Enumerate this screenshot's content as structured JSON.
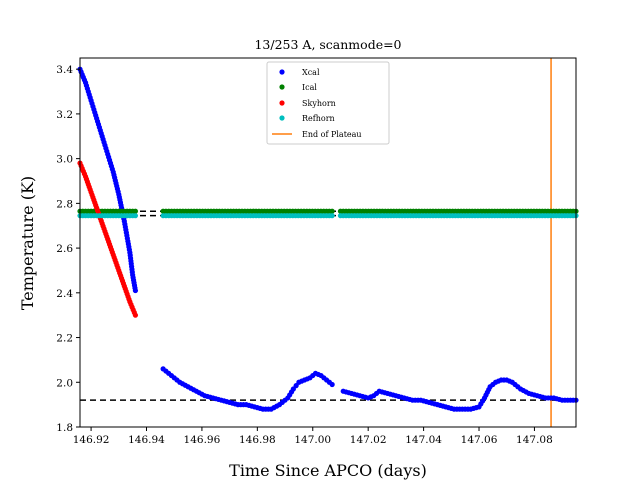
{
  "chart_data": {
    "type": "scatter",
    "title": "13/253 A, scanmode=0",
    "xlabel": "Time Since APCO (days)",
    "ylabel": "Temperature (K)",
    "xlim": [
      146.916,
      147.095
    ],
    "ylim": [
      1.8,
      3.45
    ],
    "xticks": [
      "146.92",
      "146.94",
      "146.96",
      "146.98",
      "147.00",
      "147.02",
      "147.04",
      "147.06",
      "147.08"
    ],
    "yticks": [
      "1.8",
      "2.0",
      "2.2",
      "2.4",
      "2.6",
      "2.8",
      "3.0",
      "3.2",
      "3.4"
    ],
    "grid": false,
    "legend_position": "top-center",
    "series": [
      {
        "name": "Xcal",
        "color": "#0000ff",
        "segments": [
          [
            [
              146.916,
              3.4
            ],
            [
              146.918,
              3.34
            ],
            [
              146.92,
              3.26
            ],
            [
              146.922,
              3.18
            ],
            [
              146.924,
              3.1
            ],
            [
              146.926,
              3.02
            ],
            [
              146.928,
              2.94
            ],
            [
              146.93,
              2.84
            ],
            [
              146.932,
              2.72
            ],
            [
              146.934,
              2.58
            ],
            [
              146.935,
              2.48
            ],
            [
              146.936,
              2.41
            ]
          ],
          [
            [
              146.946,
              2.06
            ],
            [
              146.949,
              2.03
            ],
            [
              146.952,
              2.0
            ],
            [
              146.955,
              1.98
            ],
            [
              146.958,
              1.96
            ],
            [
              146.961,
              1.94
            ],
            [
              146.964,
              1.93
            ],
            [
              146.967,
              1.92
            ],
            [
              146.97,
              1.91
            ],
            [
              146.973,
              1.9
            ],
            [
              146.976,
              1.9
            ],
            [
              146.979,
              1.89
            ],
            [
              146.982,
              1.88
            ],
            [
              146.985,
              1.88
            ],
            [
              146.988,
              1.9
            ],
            [
              146.991,
              1.93
            ],
            [
              146.993,
              1.97
            ],
            [
              146.995,
              2.0
            ],
            [
              146.997,
              2.01
            ],
            [
              146.999,
              2.02
            ],
            [
              147.001,
              2.04
            ],
            [
              147.003,
              2.03
            ],
            [
              147.005,
              2.01
            ],
            [
              147.007,
              1.99
            ]
          ],
          [
            [
              147.011,
              1.96
            ],
            [
              147.014,
              1.95
            ],
            [
              147.017,
              1.94
            ],
            [
              147.02,
              1.93
            ],
            [
              147.022,
              1.94
            ],
            [
              147.024,
              1.96
            ],
            [
              147.027,
              1.95
            ],
            [
              147.03,
              1.94
            ],
            [
              147.033,
              1.93
            ],
            [
              147.036,
              1.92
            ],
            [
              147.039,
              1.92
            ],
            [
              147.042,
              1.91
            ],
            [
              147.045,
              1.9
            ],
            [
              147.048,
              1.89
            ],
            [
              147.051,
              1.88
            ],
            [
              147.054,
              1.88
            ],
            [
              147.057,
              1.88
            ],
            [
              147.06,
              1.89
            ],
            [
              147.062,
              1.93
            ],
            [
              147.064,
              1.98
            ],
            [
              147.066,
              2.0
            ],
            [
              147.068,
              2.01
            ],
            [
              147.07,
              2.01
            ],
            [
              147.072,
              2.0
            ],
            [
              147.075,
              1.97
            ],
            [
              147.078,
              1.95
            ],
            [
              147.081,
              1.94
            ],
            [
              147.084,
              1.93
            ],
            [
              147.087,
              1.93
            ],
            [
              147.09,
              1.92
            ],
            [
              147.093,
              1.92
            ],
            [
              147.095,
              1.92
            ]
          ]
        ]
      },
      {
        "name": "Ical",
        "color": "#008000",
        "segments": [
          [
            [
              146.916,
              2.765
            ],
            [
              146.936,
              2.765
            ]
          ],
          [
            [
              146.946,
              2.765
            ],
            [
              147.007,
              2.765
            ]
          ],
          [
            [
              147.01,
              2.765
            ],
            [
              147.095,
              2.765
            ]
          ]
        ]
      },
      {
        "name": "Skyhorn",
        "color": "#ff0000",
        "segments": [
          [
            [
              146.916,
              2.98
            ],
            [
              146.918,
              2.92
            ],
            [
              146.92,
              2.85
            ],
            [
              146.922,
              2.78
            ],
            [
              146.924,
              2.71
            ],
            [
              146.926,
              2.64
            ],
            [
              146.928,
              2.57
            ],
            [
              146.93,
              2.5
            ],
            [
              146.932,
              2.43
            ],
            [
              146.934,
              2.36
            ],
            [
              146.936,
              2.3
            ]
          ]
        ]
      },
      {
        "name": "Refhorn",
        "color": "#00bfbf",
        "segments": [
          [
            [
              146.916,
              2.745
            ],
            [
              146.936,
              2.745
            ]
          ],
          [
            [
              146.946,
              2.745
            ],
            [
              147.007,
              2.745
            ]
          ],
          [
            [
              147.01,
              2.745
            ],
            [
              147.095,
              2.745
            ]
          ]
        ]
      }
    ],
    "reference_lines": [
      {
        "type": "hline",
        "y": 2.765,
        "color": "#000000",
        "style": "dashed"
      },
      {
        "type": "hline",
        "y": 2.745,
        "color": "#000000",
        "style": "dashed"
      },
      {
        "type": "hline",
        "y": 1.92,
        "color": "#000000",
        "style": "dashed"
      },
      {
        "type": "vline",
        "x": 147.086,
        "color": "#ff7f0e",
        "name": "End of Plateau"
      }
    ]
  }
}
